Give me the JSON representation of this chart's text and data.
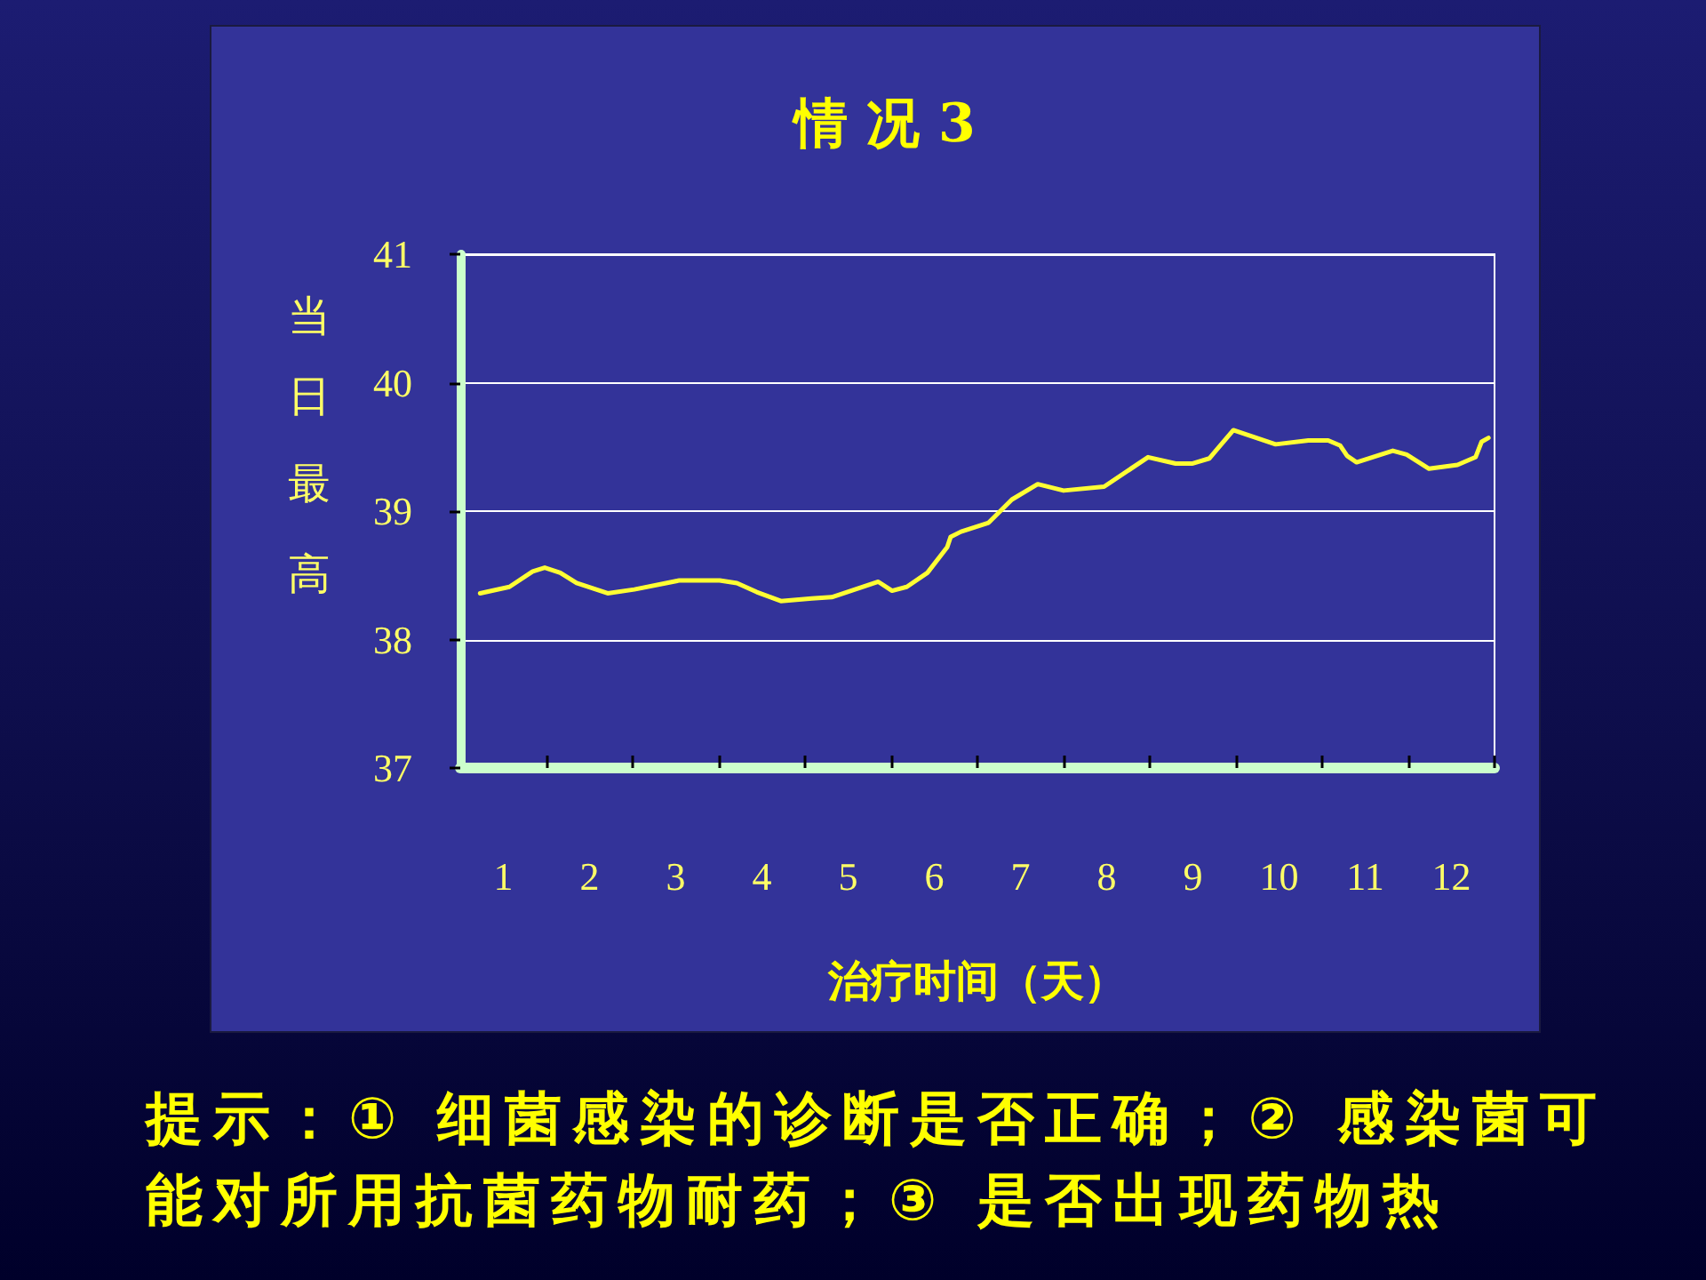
{
  "chart_data": {
    "type": "line",
    "title": "情 况 3",
    "xlabel": "治疗时间（天）",
    "ylabel": "当日最高",
    "x": [
      0.73,
      1.07,
      1.34,
      1.48,
      1.66,
      1.85,
      2.21,
      2.52,
      3.04,
      3.51,
      3.71,
      3.94,
      4.22,
      4.58,
      4.81,
      5.35,
      5.51,
      5.68,
      5.92,
      6.15,
      6.19,
      6.31,
      6.63,
      6.9,
      7.2,
      7.5,
      7.97,
      8.48,
      8.8,
      8.99,
      9.19,
      9.47,
      9.96,
      10.34,
      10.57,
      10.71,
      10.79,
      10.9,
      11.32,
      11.48,
      11.74,
      12.07,
      12.28,
      12.35,
      12.43
    ],
    "series": [
      {
        "color": "#ffff33",
        "values": [
          38.36,
          38.41,
          38.53,
          38.56,
          38.52,
          38.44,
          38.36,
          38.39,
          38.46,
          38.46,
          38.44,
          38.37,
          38.3,
          38.32,
          38.33,
          38.45,
          38.38,
          38.41,
          38.52,
          38.72,
          38.8,
          38.84,
          38.91,
          39.09,
          39.21,
          39.16,
          39.19,
          39.42,
          39.37,
          39.37,
          39.41,
          39.63,
          39.52,
          39.55,
          39.55,
          39.51,
          39.43,
          39.38,
          39.47,
          39.44,
          39.33,
          39.36,
          39.42,
          39.54,
          39.57
        ]
      }
    ],
    "xlim": [
      0.5,
      12.5
    ],
    "xticks": [
      1,
      2,
      3,
      4,
      5,
      6,
      7,
      8,
      9,
      10,
      11,
      12,
      {
        "value": 1.5,
        "label": null
      },
      {
        "value": 2.5,
        "label": null
      },
      {
        "value": 3.5,
        "label": null
      },
      {
        "value": 4.5,
        "label": null
      },
      {
        "value": 5.5,
        "label": null
      },
      {
        "value": 6.5,
        "label": null
      },
      {
        "value": 7.5,
        "label": null
      },
      {
        "value": 8.5,
        "label": null
      },
      {
        "value": 9.5,
        "label": null
      },
      {
        "value": 10.5,
        "label": null
      },
      {
        "value": 11.5,
        "label": null
      },
      {
        "value": 12.5,
        "label": null
      }
    ],
    "ylim": [
      37,
      41
    ],
    "yticks": [
      37,
      38,
      39,
      40,
      41
    ],
    "grid": "y",
    "annotations": [
      "提示：① 细菌感染的诊断是否正确；② 感染菌可能对所用抗菌药物耐药；③ 是否出现药物热"
    ]
  }
}
